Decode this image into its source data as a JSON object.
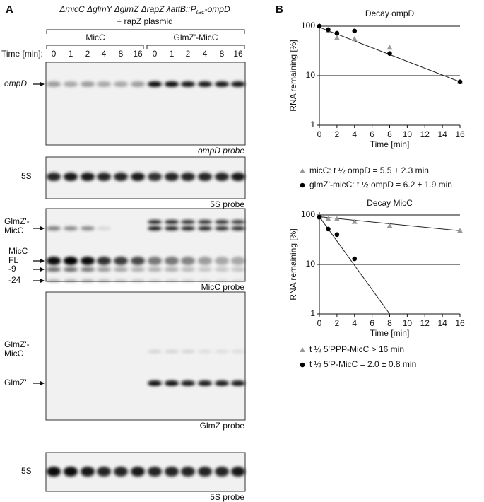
{
  "panel_a": {
    "label": "A",
    "genotype": [
      "ΔmicC ΔglmY ΔglmZ ΔrapZ λattB::P",
      "tac",
      "-ompD"
    ],
    "plasmid": "+ rapZ plasmid",
    "groups": [
      "MicC",
      "GlmZ'-MicC"
    ],
    "time_label": "Time [min]:",
    "times": [
      "0",
      "1",
      "2",
      "4",
      "8",
      "16"
    ],
    "blots": [
      {
        "labels": [
          [
            "ompD"
          ]
        ],
        "probe": "ompD probe"
      },
      {
        "labels": [
          [
            "5S"
          ]
        ],
        "probe": "5S probe"
      },
      {
        "labels": [
          [
            "GlmZ'-",
            "MicC"
          ],
          [
            "MicC",
            "FL"
          ],
          [
            "-9"
          ],
          [
            "-24"
          ]
        ],
        "probe": "MicC probe"
      },
      {
        "labels": [
          [
            "GlmZ'-",
            "MicC"
          ],
          [
            "GlmZ'"
          ]
        ],
        "probe": "GlmZ probe"
      },
      {
        "labels": [
          [
            "5S"
          ]
        ],
        "probe": "5S probe"
      }
    ]
  },
  "panel_b_label": "B",
  "chart_data": [
    {
      "type": "scatter",
      "title": "Decay ompD",
      "x_label": "Time [min]",
      "y_label": "RNA remaining [%]",
      "xlim": [
        0,
        16
      ],
      "xticks": [
        0,
        2,
        4,
        6,
        8,
        10,
        12,
        14,
        16
      ],
      "ylim": [
        1,
        100
      ],
      "yticks": [
        1,
        10,
        100
      ],
      "log_y": true,
      "grid": true,
      "series": [
        {
          "name": "micC: t ½ ompD = 5.5 ± 2.3 min",
          "color": "#999999",
          "marker": "triangle",
          "x": [
            0,
            1,
            2,
            4,
            8,
            16
          ],
          "values": [
            100,
            80,
            58,
            55,
            37,
            7.5
          ]
        },
        {
          "name": "glmZ'-micC:  t ½ ompD = 6.2 ± 1.9 min",
          "color": "#000000",
          "marker": "circle",
          "x": [
            0,
            1,
            2,
            4,
            8,
            16
          ],
          "values": [
            100,
            85,
            72,
            80,
            28,
            7.5
          ]
        }
      ],
      "fits": [
        {
          "x": [
            0,
            16
          ],
          "values": [
            95,
            7.5
          ]
        }
      ]
    },
    {
      "type": "scatter",
      "title": "Decay MicC",
      "x_label": "Time [min]",
      "y_label": "RNA remaining [%]",
      "xlim": [
        0,
        16
      ],
      "xticks": [
        0,
        2,
        4,
        6,
        8,
        10,
        12,
        14,
        16
      ],
      "ylim": [
        1,
        100
      ],
      "yticks": [
        1,
        10,
        100
      ],
      "log_y": true,
      "grid": true,
      "series": [
        {
          "name": "t ½ 5'PPP-MicC > 16 min",
          "color": "#999999",
          "marker": "triangle",
          "x": [
            0,
            1,
            2,
            4,
            8,
            16
          ],
          "values": [
            90,
            83,
            83,
            73,
            60,
            48
          ]
        },
        {
          "name": "t ½ 5'P-MicC = 2.0 ± 0.8 min",
          "color": "#000000",
          "marker": "circle",
          "x": [
            0,
            1,
            2,
            4
          ],
          "values": [
            90,
            52,
            40,
            13
          ]
        }
      ],
      "fits": [
        {
          "x": [
            0,
            16
          ],
          "values": [
            92,
            48
          ]
        },
        {
          "x": [
            0,
            8
          ],
          "values": [
            92,
            1
          ]
        }
      ]
    }
  ]
}
